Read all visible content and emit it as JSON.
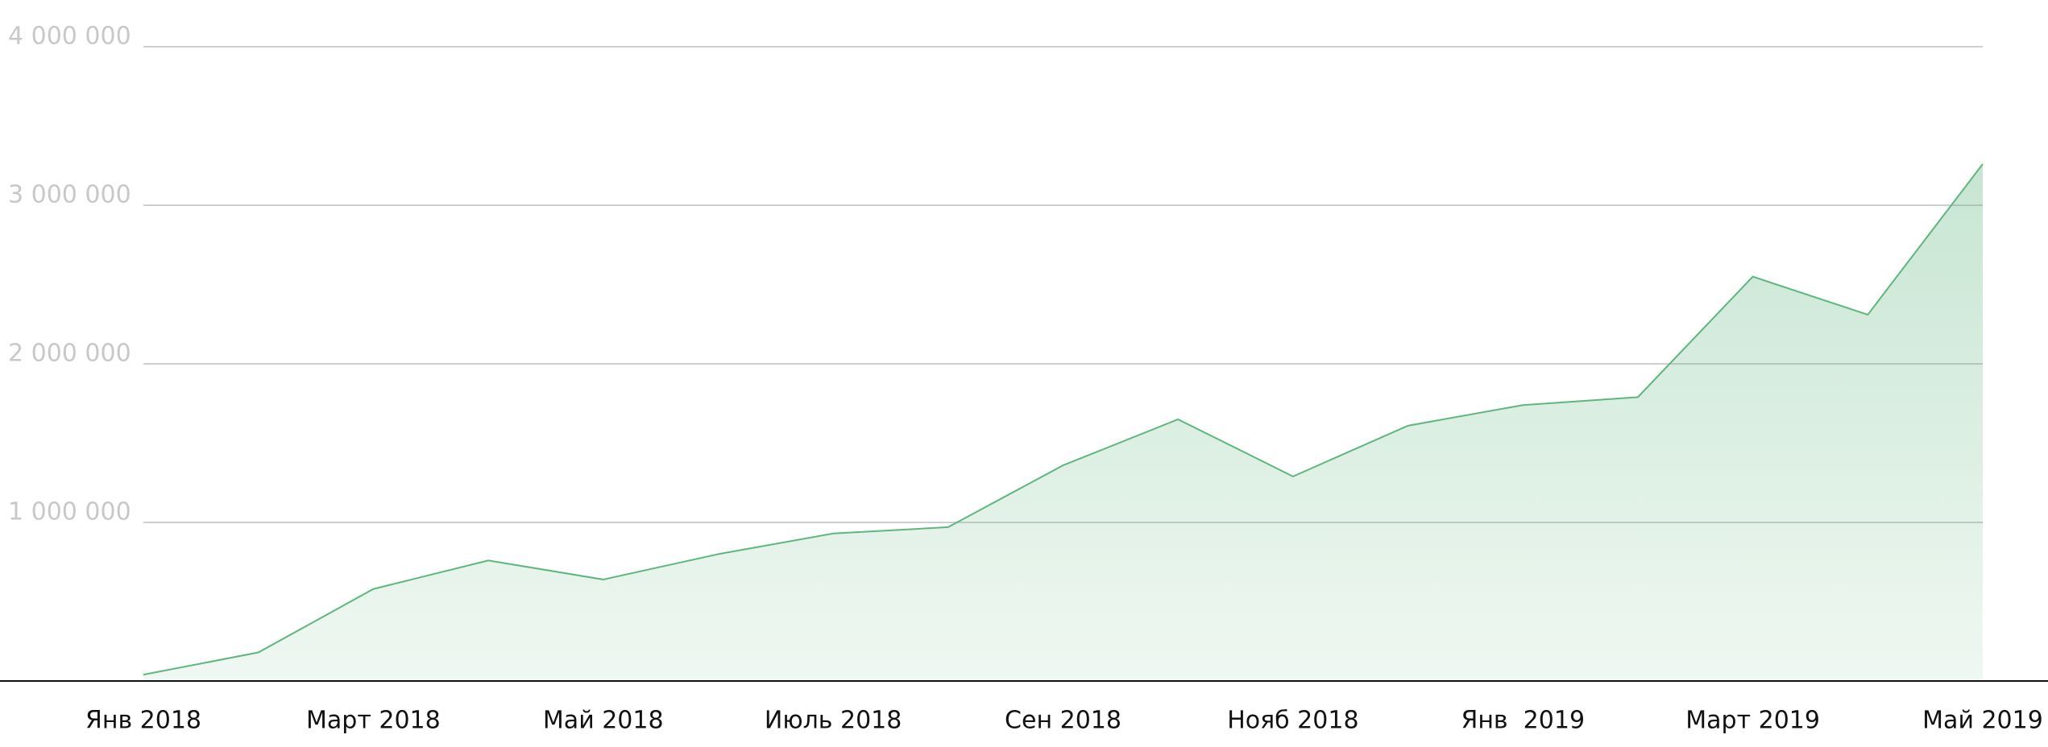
{
  "chart_data": {
    "type": "area",
    "categories": [
      "Янв 2018",
      null,
      "Март 2018",
      null,
      "Май 2018",
      null,
      "Июль 2018",
      null,
      "Сен 2018",
      null,
      "Нояб 2018",
      null,
      "Янв  2019",
      null,
      "Март 2019",
      null,
      "Май 2019"
    ],
    "values": [
      40000,
      180000,
      580000,
      760000,
      640000,
      800000,
      930000,
      970000,
      1360000,
      1650000,
      1290000,
      1610000,
      1740000,
      1790000,
      2550000,
      2310000,
      3260000
    ],
    "color": "#5fb67e",
    "ylim": [
      0,
      4000000
    ],
    "yticks": [
      {
        "value": 1000000,
        "label": "1 000 000"
      },
      {
        "value": 2000000,
        "label": "2 000 000"
      },
      {
        "value": 3000000,
        "label": "3 000 000"
      },
      {
        "value": 4000000,
        "label": "4 000 000"
      }
    ],
    "grid": true
  }
}
